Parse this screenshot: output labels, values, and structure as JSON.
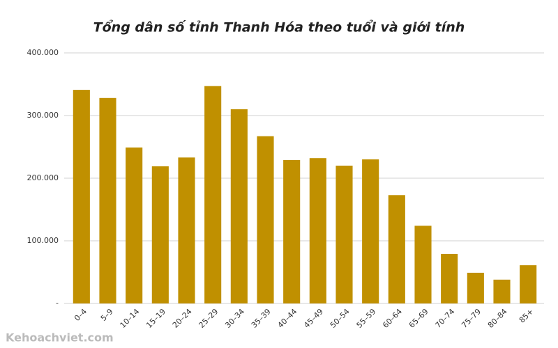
{
  "chart_data": {
    "type": "bar",
    "title": "Tổng dân số tỉnh Thanh Hóa theo tuổi và giới tính",
    "categories": [
      "0–4",
      "5–9",
      "10–14",
      "15–19",
      "20–24",
      "25–29",
      "30–34",
      "35–39",
      "40–44",
      "45–49",
      "50–54",
      "55–59",
      "60–64",
      "65–69",
      "70–74",
      "75–79",
      "80–84",
      "85+"
    ],
    "values": [
      341000,
      328000,
      249000,
      219000,
      233000,
      347000,
      310000,
      267000,
      229000,
      232000,
      220000,
      230000,
      173000,
      124000,
      79000,
      49000,
      38000,
      61000
    ],
    "color": "#c09000",
    "ylim": [
      0,
      400000
    ],
    "yticks": [
      {
        "value": 0,
        "label": "-"
      },
      {
        "value": 100000,
        "label": "100.000"
      },
      {
        "value": 200000,
        "label": "200.000"
      },
      {
        "value": 300000,
        "label": "300.000"
      },
      {
        "value": 400000,
        "label": "400.000"
      }
    ],
    "grid": true
  },
  "watermark": "Kehoachviet.com"
}
